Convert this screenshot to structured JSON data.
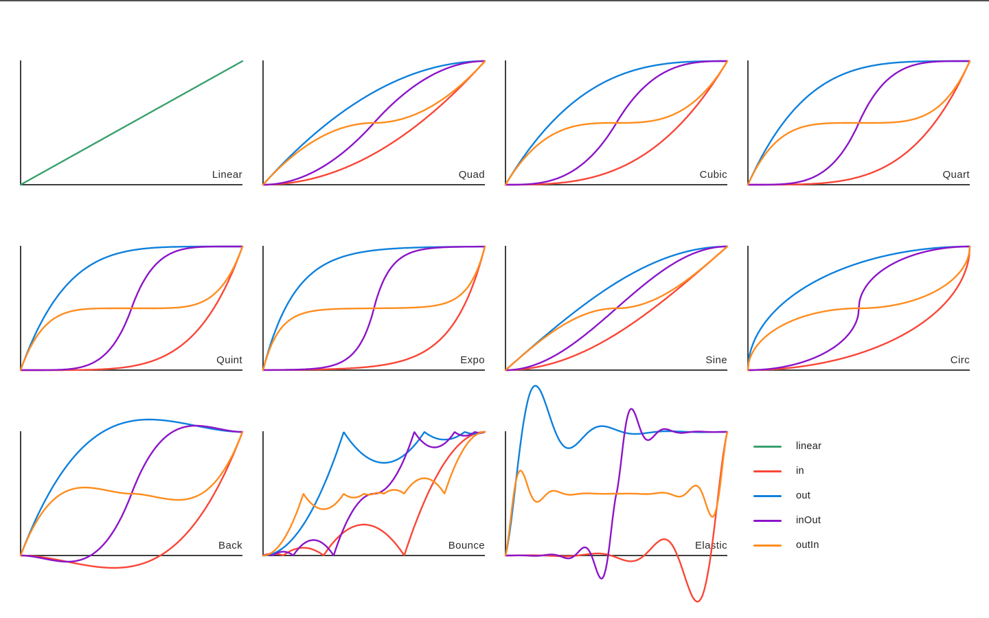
{
  "window": {
    "background": "#ffffff",
    "top_border_color": "#4f4f4f"
  },
  "axis": {
    "color": "#3d3d3d",
    "label_color": "#2b2b2b",
    "ticks": false,
    "grid": false
  },
  "palette": {
    "linear": "#3AA06E",
    "in": "#F94637",
    "out": "#0E80DC",
    "inOut": "#8C14C8",
    "outIn": "#FF8C1E"
  },
  "legend": {
    "position": "bottom-right-cell",
    "entries": [
      {
        "label": "linear",
        "color": "#3AA06E"
      },
      {
        "label": "in",
        "color": "#F94637"
      },
      {
        "label": "out",
        "color": "#0E80DC"
      },
      {
        "label": "inOut",
        "color": "#8C14C8"
      },
      {
        "label": "outIn",
        "color": "#FF8C1E"
      }
    ]
  },
  "chart_data": {
    "type": "line",
    "x_range": [
      0,
      1
    ],
    "y_range": [
      0,
      1
    ],
    "grid": false,
    "axis_ticks": false,
    "layout": "4x3-grid, titles inside bottom-right of each axes, legend in empty bottom-right cell",
    "variants_per_family": [
      "in",
      "out",
      "inOut",
      "outIn"
    ],
    "subplots": [
      {
        "title": "Linear",
        "easing": "linear",
        "series": [
          {
            "name": "linear",
            "variant": "in"
          }
        ]
      },
      {
        "title": "Quad",
        "easing": "quad",
        "series": [
          {
            "name": "in",
            "variant": "in"
          },
          {
            "name": "out",
            "variant": "out"
          },
          {
            "name": "inOut",
            "variant": "inOut"
          },
          {
            "name": "outIn",
            "variant": "outIn"
          }
        ]
      },
      {
        "title": "Cubic",
        "easing": "cubic",
        "series": [
          {
            "name": "in",
            "variant": "in"
          },
          {
            "name": "out",
            "variant": "out"
          },
          {
            "name": "inOut",
            "variant": "inOut"
          },
          {
            "name": "outIn",
            "variant": "outIn"
          }
        ]
      },
      {
        "title": "Quart",
        "easing": "quart",
        "series": [
          {
            "name": "in",
            "variant": "in"
          },
          {
            "name": "out",
            "variant": "out"
          },
          {
            "name": "inOut",
            "variant": "inOut"
          },
          {
            "name": "outIn",
            "variant": "outIn"
          }
        ]
      },
      {
        "title": "Quint",
        "easing": "quint",
        "series": [
          {
            "name": "in",
            "variant": "in"
          },
          {
            "name": "out",
            "variant": "out"
          },
          {
            "name": "inOut",
            "variant": "inOut"
          },
          {
            "name": "outIn",
            "variant": "outIn"
          }
        ]
      },
      {
        "title": "Expo",
        "easing": "expo",
        "series": [
          {
            "name": "in",
            "variant": "in"
          },
          {
            "name": "out",
            "variant": "out"
          },
          {
            "name": "inOut",
            "variant": "inOut"
          },
          {
            "name": "outIn",
            "variant": "outIn"
          }
        ]
      },
      {
        "title": "Sine",
        "easing": "sine",
        "series": [
          {
            "name": "in",
            "variant": "in"
          },
          {
            "name": "out",
            "variant": "out"
          },
          {
            "name": "inOut",
            "variant": "inOut"
          },
          {
            "name": "outIn",
            "variant": "outIn"
          }
        ]
      },
      {
        "title": "Circ",
        "easing": "circ",
        "series": [
          {
            "name": "in",
            "variant": "in"
          },
          {
            "name": "out",
            "variant": "out"
          },
          {
            "name": "inOut",
            "variant": "inOut"
          },
          {
            "name": "outIn",
            "variant": "outIn"
          }
        ]
      },
      {
        "title": "Back",
        "easing": "back",
        "series": [
          {
            "name": "in",
            "variant": "in"
          },
          {
            "name": "out",
            "variant": "out"
          },
          {
            "name": "inOut",
            "variant": "inOut"
          },
          {
            "name": "outIn",
            "variant": "outIn"
          }
        ]
      },
      {
        "title": "Bounce",
        "easing": "bounce",
        "series": [
          {
            "name": "in",
            "variant": "in"
          },
          {
            "name": "out",
            "variant": "out"
          },
          {
            "name": "inOut",
            "variant": "inOut"
          },
          {
            "name": "outIn",
            "variant": "outIn"
          }
        ]
      },
      {
        "title": "Elastic",
        "easing": "elastic",
        "series": [
          {
            "name": "in",
            "variant": "in"
          },
          {
            "name": "out",
            "variant": "out"
          },
          {
            "name": "inOut",
            "variant": "inOut"
          },
          {
            "name": "outIn",
            "variant": "outIn"
          }
        ]
      }
    ]
  }
}
